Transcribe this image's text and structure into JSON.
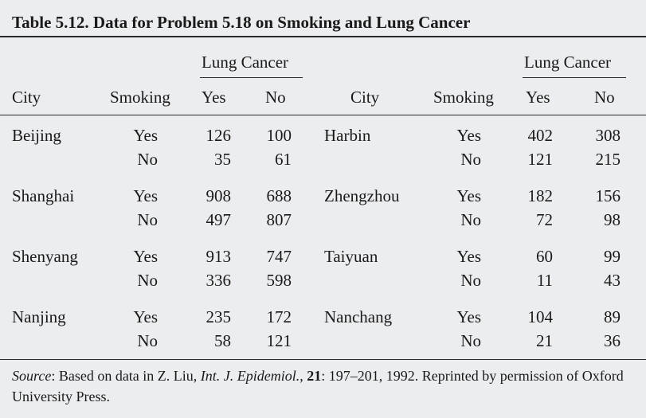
{
  "title": "Table  5.12.  Data for Problem 5.18 on Smoking and Lung Cancer",
  "header": {
    "group_label": "Lung Cancer",
    "city": "City",
    "smoking": "Smoking",
    "yes": "Yes",
    "no": "No"
  },
  "left": [
    {
      "city": "Beijing",
      "rows": [
        {
          "smoking": "Yes",
          "yes": "126",
          "no": "100"
        },
        {
          "smoking": "No",
          "yes": "35",
          "no": "61"
        }
      ]
    },
    {
      "city": "Shanghai",
      "rows": [
        {
          "smoking": "Yes",
          "yes": "908",
          "no": "688"
        },
        {
          "smoking": "No",
          "yes": "497",
          "no": "807"
        }
      ]
    },
    {
      "city": "Shenyang",
      "rows": [
        {
          "smoking": "Yes",
          "yes": "913",
          "no": "747"
        },
        {
          "smoking": "No",
          "yes": "336",
          "no": "598"
        }
      ]
    },
    {
      "city": "Nanjing",
      "rows": [
        {
          "smoking": "Yes",
          "yes": "235",
          "no": "172"
        },
        {
          "smoking": "No",
          "yes": "58",
          "no": "121"
        }
      ]
    }
  ],
  "right": [
    {
      "city": "Harbin",
      "rows": [
        {
          "smoking": "Yes",
          "yes": "402",
          "no": "308"
        },
        {
          "smoking": "No",
          "yes": "121",
          "no": "215"
        }
      ]
    },
    {
      "city": "Zhengzhou",
      "rows": [
        {
          "smoking": "Yes",
          "yes": "182",
          "no": "156"
        },
        {
          "smoking": "No",
          "yes": "72",
          "no": "98"
        }
      ]
    },
    {
      "city": "Taiyuan",
      "rows": [
        {
          "smoking": "Yes",
          "yes": "60",
          "no": "99"
        },
        {
          "smoking": "No",
          "yes": "11",
          "no": "43"
        }
      ]
    },
    {
      "city": "Nanchang",
      "rows": [
        {
          "smoking": "Yes",
          "yes": "104",
          "no": "89"
        },
        {
          "smoking": "No",
          "yes": "21",
          "no": "36"
        }
      ]
    }
  ],
  "source": {
    "label": "Source",
    "text1": ": Based on data in Z. Liu, ",
    "journal": "Int. J. Epidemiol.",
    "text2": ", ",
    "volume": "21",
    "text3": ": 197–201, 1992. Reprinted by permission of Oxford University Press."
  }
}
